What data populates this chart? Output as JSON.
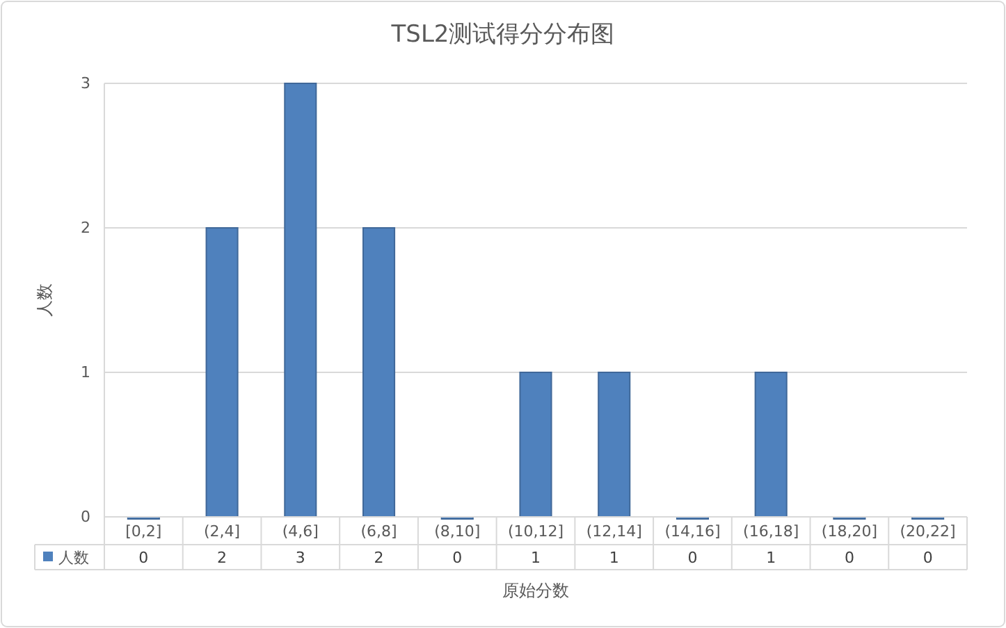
{
  "chart_data": {
    "type": "bar",
    "title": "TSL2测试得分分布图",
    "xlabel": "原始分数",
    "ylabel": "人数",
    "categories": [
      "[0,2]",
      "(2,4]",
      "(4,6]",
      "(6,8]",
      "(8,10]",
      "(10,12]",
      "(12,14]",
      "(14,16]",
      "(16,18]",
      "(18,20]",
      "(20,22]"
    ],
    "series": [
      {
        "name": "人数",
        "color": "#4f81bd",
        "values": [
          0,
          2,
          3,
          2,
          0,
          1,
          1,
          0,
          1,
          0,
          0
        ]
      }
    ],
    "ylim": [
      0,
      3
    ],
    "yticks": [
      0,
      1,
      2,
      3
    ],
    "grid": "y",
    "legend": "bottom",
    "data_labels": true
  }
}
